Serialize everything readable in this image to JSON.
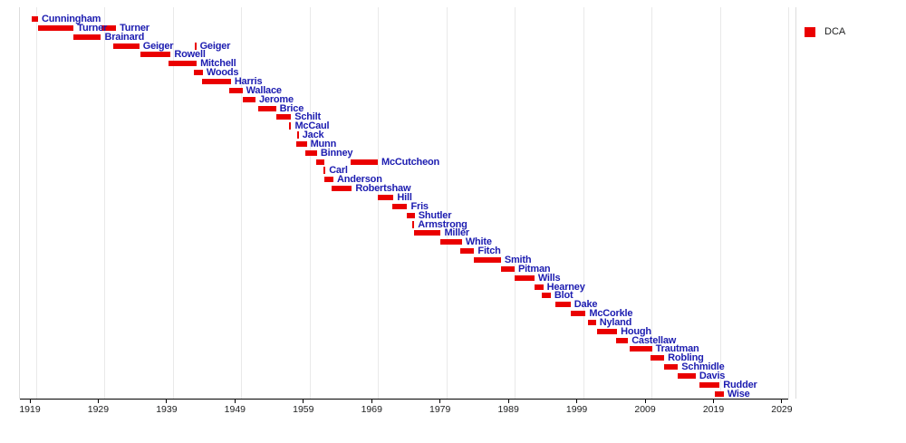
{
  "legend": {
    "label": "DCA",
    "swatch_color": "#ea0000"
  },
  "colors": {
    "bar": "#ea0000",
    "name_label": "#1c1cb0",
    "gridline": "#e9e9e9",
    "plot_border": "#dddddd",
    "axis": "#000000",
    "axis_tick_label": "#202122"
  },
  "chart_data": {
    "type": "bar",
    "subtype": "gantt-timeline",
    "title": "",
    "legend_entries": [
      "DCA"
    ],
    "layout_hints": {
      "legend_position": "top-right",
      "grid": "vertical-decade-gridlines",
      "bar_color_meaning": "DCA tenure"
    },
    "x_axis": {
      "min": 1917.5,
      "max": 2031.1,
      "tick_years": [
        1919,
        1929,
        1939,
        1949,
        1959,
        1969,
        1979,
        1989,
        1999,
        2009,
        2019,
        2029
      ],
      "tick_labels": [
        "1919",
        "1929",
        "1939",
        "1949",
        "1959",
        "1969",
        "1979",
        "1989",
        "1999",
        "2009",
        "2019",
        "2029"
      ],
      "gridline_years": [
        1920,
        1930,
        1940,
        1950,
        1960,
        1970,
        1980,
        1990,
        2000,
        2010,
        2020,
        2030
      ],
      "border_years": [
        1917.5,
        2031.1
      ]
    },
    "rows": [
      {
        "name": "Cunningham",
        "segments": [
          {
            "start": 1919.2,
            "end": 1920.2,
            "shape": "bar",
            "label_shown": true
          }
        ]
      },
      {
        "name": "Turner",
        "segments": [
          {
            "start": 1920.2,
            "end": 1925.4,
            "shape": "bar",
            "label_shown": true
          },
          {
            "start": 1929.5,
            "end": 1931.6,
            "shape": "bar",
            "label_shown": true
          }
        ]
      },
      {
        "name": "Brainard",
        "segments": [
          {
            "start": 1925.3,
            "end": 1929.4,
            "shape": "bar",
            "label_shown": true
          }
        ]
      },
      {
        "name": "Geiger",
        "segments": [
          {
            "start": 1931.2,
            "end": 1935.0,
            "shape": "bar",
            "label_shown": true
          },
          {
            "start": 1943.2,
            "end": 1943.4,
            "shape": "tick",
            "label_shown": true
          }
        ]
      },
      {
        "name": "Rowell",
        "segments": [
          {
            "start": 1935.2,
            "end": 1939.6,
            "shape": "bar",
            "label_shown": true
          }
        ]
      },
      {
        "name": "Mitchell",
        "segments": [
          {
            "start": 1939.3,
            "end": 1943.4,
            "shape": "bar",
            "label_shown": true
          }
        ]
      },
      {
        "name": "Woods",
        "segments": [
          {
            "start": 1943.0,
            "end": 1944.3,
            "shape": "bar",
            "label_shown": true
          }
        ]
      },
      {
        "name": "Harris",
        "segments": [
          {
            "start": 1944.2,
            "end": 1948.4,
            "shape": "bar",
            "label_shown": true
          }
        ]
      },
      {
        "name": "Wallace",
        "segments": [
          {
            "start": 1948.2,
            "end": 1950.1,
            "shape": "bar",
            "label_shown": true
          }
        ]
      },
      {
        "name": "Jerome",
        "segments": [
          {
            "start": 1950.2,
            "end": 1952.0,
            "shape": "bar",
            "label_shown": true
          }
        ]
      },
      {
        "name": "Brice",
        "segments": [
          {
            "start": 1952.4,
            "end": 1955.0,
            "shape": "bar",
            "label_shown": true
          }
        ]
      },
      {
        "name": "Schilt",
        "segments": [
          {
            "start": 1955.0,
            "end": 1957.2,
            "shape": "bar",
            "label_shown": true
          }
        ]
      },
      {
        "name": "McCaul",
        "segments": [
          {
            "start": 1957.1,
            "end": 1957.3,
            "shape": "tick",
            "label_shown": true
          }
        ]
      },
      {
        "name": "Jack",
        "segments": [
          {
            "start": 1958.2,
            "end": 1958.4,
            "shape": "tick",
            "label_shown": true
          }
        ]
      },
      {
        "name": "Munn",
        "segments": [
          {
            "start": 1958.0,
            "end": 1959.5,
            "shape": "bar",
            "label_shown": true
          }
        ]
      },
      {
        "name": "Binney",
        "segments": [
          {
            "start": 1959.3,
            "end": 1961.0,
            "shape": "bar",
            "label_shown": true
          }
        ]
      },
      {
        "name": "McCutcheon",
        "segments": [
          {
            "start": 1960.9,
            "end": 1962.1,
            "shape": "bar",
            "label_shown": false
          },
          {
            "start": 1965.9,
            "end": 1969.9,
            "shape": "bar",
            "label_shown": true
          }
        ]
      },
      {
        "name": "Carl",
        "segments": [
          {
            "start": 1962.1,
            "end": 1962.3,
            "shape": "tick",
            "label_shown": true
          }
        ]
      },
      {
        "name": "Anderson",
        "segments": [
          {
            "start": 1962.1,
            "end": 1963.4,
            "shape": "bar",
            "label_shown": true
          }
        ]
      },
      {
        "name": "Robertshaw",
        "segments": [
          {
            "start": 1963.2,
            "end": 1966.1,
            "shape": "bar",
            "label_shown": true
          }
        ]
      },
      {
        "name": "Hill",
        "segments": [
          {
            "start": 1969.9,
            "end": 1972.2,
            "shape": "bar",
            "label_shown": true
          }
        ]
      },
      {
        "name": "Fris",
        "segments": [
          {
            "start": 1972.0,
            "end": 1974.2,
            "shape": "bar",
            "label_shown": true
          }
        ]
      },
      {
        "name": "Shutler",
        "segments": [
          {
            "start": 1974.2,
            "end": 1975.3,
            "shape": "bar",
            "label_shown": true
          }
        ]
      },
      {
        "name": "Armstrong",
        "segments": [
          {
            "start": 1975.1,
            "end": 1975.3,
            "shape": "tick",
            "label_shown": true
          }
        ]
      },
      {
        "name": "Miller",
        "segments": [
          {
            "start": 1975.2,
            "end": 1979.1,
            "shape": "bar",
            "label_shown": true
          }
        ]
      },
      {
        "name": "White",
        "segments": [
          {
            "start": 1979.1,
            "end": 1982.2,
            "shape": "bar",
            "label_shown": true
          }
        ]
      },
      {
        "name": "Fitch",
        "segments": [
          {
            "start": 1982.0,
            "end": 1984.0,
            "shape": "bar",
            "label_shown": true
          }
        ]
      },
      {
        "name": "Smith",
        "segments": [
          {
            "start": 1984.0,
            "end": 1987.9,
            "shape": "bar",
            "label_shown": true
          }
        ]
      },
      {
        "name": "Pitman",
        "segments": [
          {
            "start": 1987.9,
            "end": 1989.9,
            "shape": "bar",
            "label_shown": true
          }
        ]
      },
      {
        "name": "Wills",
        "segments": [
          {
            "start": 1989.9,
            "end": 1992.8,
            "shape": "bar",
            "label_shown": true
          }
        ]
      },
      {
        "name": "Hearney",
        "segments": [
          {
            "start": 1992.8,
            "end": 1994.1,
            "shape": "bar",
            "label_shown": true
          }
        ]
      },
      {
        "name": "Blot",
        "segments": [
          {
            "start": 1993.9,
            "end": 1995.2,
            "shape": "bar",
            "label_shown": true
          }
        ]
      },
      {
        "name": "Dake",
        "segments": [
          {
            "start": 1995.9,
            "end": 1998.1,
            "shape": "bar",
            "label_shown": true
          }
        ]
      },
      {
        "name": "McCorkle",
        "segments": [
          {
            "start": 1998.1,
            "end": 2000.3,
            "shape": "bar",
            "label_shown": true
          }
        ]
      },
      {
        "name": "Nyland",
        "segments": [
          {
            "start": 2000.7,
            "end": 2001.8,
            "shape": "bar",
            "label_shown": true
          }
        ]
      },
      {
        "name": "Hough",
        "segments": [
          {
            "start": 2002.0,
            "end": 2004.9,
            "shape": "bar",
            "label_shown": true
          }
        ]
      },
      {
        "name": "Castellaw",
        "segments": [
          {
            "start": 2004.7,
            "end": 2006.5,
            "shape": "bar",
            "label_shown": true
          }
        ]
      },
      {
        "name": "Trautman",
        "segments": [
          {
            "start": 2006.7,
            "end": 2010.0,
            "shape": "bar",
            "label_shown": true
          }
        ]
      },
      {
        "name": "Robling",
        "segments": [
          {
            "start": 2009.8,
            "end": 2011.8,
            "shape": "bar",
            "label_shown": true
          }
        ]
      },
      {
        "name": "Schmidle",
        "segments": [
          {
            "start": 2011.8,
            "end": 2013.8,
            "shape": "bar",
            "label_shown": true
          }
        ]
      },
      {
        "name": "Davis",
        "segments": [
          {
            "start": 2013.8,
            "end": 2016.4,
            "shape": "bar",
            "label_shown": true
          }
        ]
      },
      {
        "name": "Rudder",
        "segments": [
          {
            "start": 2016.9,
            "end": 2019.9,
            "shape": "bar",
            "label_shown": true
          }
        ]
      },
      {
        "name": "Wise",
        "segments": [
          {
            "start": 2019.2,
            "end": 2020.5,
            "shape": "bar",
            "label_shown": true
          }
        ]
      }
    ]
  }
}
